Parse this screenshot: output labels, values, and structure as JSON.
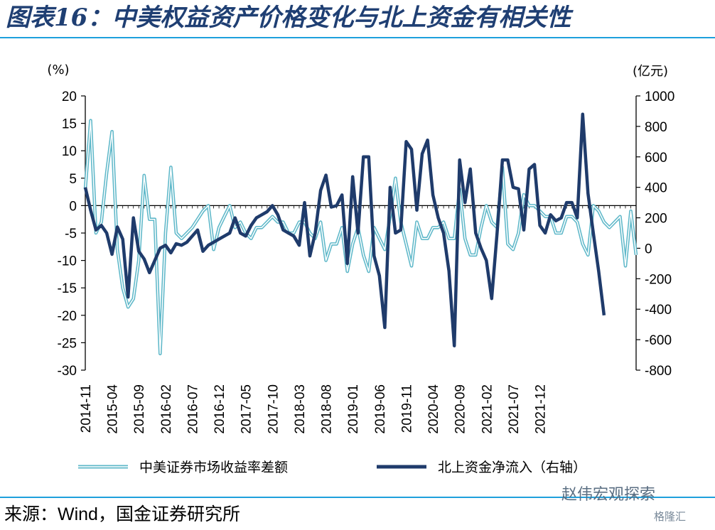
{
  "title": "图表16：中美权益资产价格变化与北上资金有相关性",
  "source": "来源：Wind，国金证券研究所",
  "watermark": "赵伟宏观探索",
  "watermark_sub": "格隆汇",
  "colors": {
    "title": "#1f3f73",
    "rule": "#1ea0dc",
    "series_spread": "#5fb8c9",
    "series_flow": "#1f3b6b"
  },
  "chart_data": {
    "type": "line",
    "left_unit": "(%)",
    "right_unit": "(亿元)",
    "left_ylim": [
      -30,
      20
    ],
    "left_ticks": [
      "20",
      "15",
      "10",
      "5",
      "0",
      "-5",
      "-10",
      "-15",
      "-20",
      "-25",
      "-30"
    ],
    "right_ylim": [
      -800,
      1000
    ],
    "right_ticks": [
      "1000",
      "800",
      "600",
      "400",
      "200",
      "0",
      "-200",
      "-400",
      "-600",
      "-800"
    ],
    "x_tick_labels": [
      "2014-11",
      "2015-04",
      "2015-09",
      "2016-02",
      "2016-07",
      "2016-12",
      "2017-05",
      "2017-10",
      "2018-03",
      "2018-08",
      "2019-01",
      "2019-06",
      "2019-11",
      "2020-04",
      "2020-09",
      "2021-02",
      "2021-07",
      "2021-12"
    ],
    "x_start": "2014-11",
    "grid": false,
    "legend_position": "bottom",
    "series": [
      {
        "name": "中美证券市场收益率差额",
        "axis": "left",
        "style": "double-line",
        "values": [
          3,
          15.5,
          -5,
          -3,
          6,
          13.5,
          -8,
          -15,
          -18.5,
          -17,
          -10,
          5.5,
          -2.5,
          -2.5,
          -27,
          -5,
          7,
          -5,
          -6,
          -5,
          -4,
          -2.5,
          -1,
          0,
          -8,
          -4,
          -2,
          0,
          -4,
          -3,
          -5,
          -6,
          -4,
          -4,
          -3,
          -2,
          -3,
          -3,
          -5,
          -5,
          -3,
          -3,
          -5,
          -6,
          -3,
          -10,
          -7,
          -7,
          -4,
          -12,
          -7,
          -4,
          -9,
          -12,
          -4,
          -6,
          -8,
          -2,
          5,
          -3,
          -7,
          -11,
          -3,
          -6,
          -6,
          -4,
          -4,
          -3,
          -6,
          -6,
          3,
          -6,
          -9,
          -9,
          -4,
          0,
          -3,
          -4,
          7,
          -7,
          -8,
          -5,
          2,
          0,
          0,
          -1,
          -2,
          -2,
          -5,
          -5,
          -2,
          -2,
          -3,
          -7,
          -9,
          0,
          -1,
          -3,
          -4,
          -3,
          -2,
          -11,
          -1,
          -9
        ]
      },
      {
        "name": "北上资金净流入（右轴）",
        "axis": "right",
        "style": "thick-line",
        "values": [
          400,
          250,
          120,
          150,
          100,
          -40,
          140,
          60,
          -320,
          200,
          -20,
          -70,
          -160,
          -80,
          0,
          20,
          -30,
          30,
          20,
          40,
          80,
          120,
          -20,
          20,
          40,
          60,
          80,
          100,
          200,
          100,
          80,
          150,
          200,
          220,
          240,
          280,
          220,
          120,
          100,
          80,
          20,
          300,
          -50,
          100,
          380,
          480,
          270,
          280,
          350,
          -100,
          470,
          100,
          600,
          600,
          -50,
          -180,
          -520,
          400,
          100,
          120,
          700,
          650,
          250,
          620,
          710,
          350,
          200,
          100,
          -150,
          -640,
          580,
          300,
          520,
          100,
          0,
          -80,
          -330,
          100,
          580,
          580,
          400,
          390,
          120,
          520,
          550,
          150,
          100,
          220,
          180,
          200,
          300,
          300,
          200,
          880,
          360,
          100,
          -150,
          -440
        ]
      }
    ]
  }
}
